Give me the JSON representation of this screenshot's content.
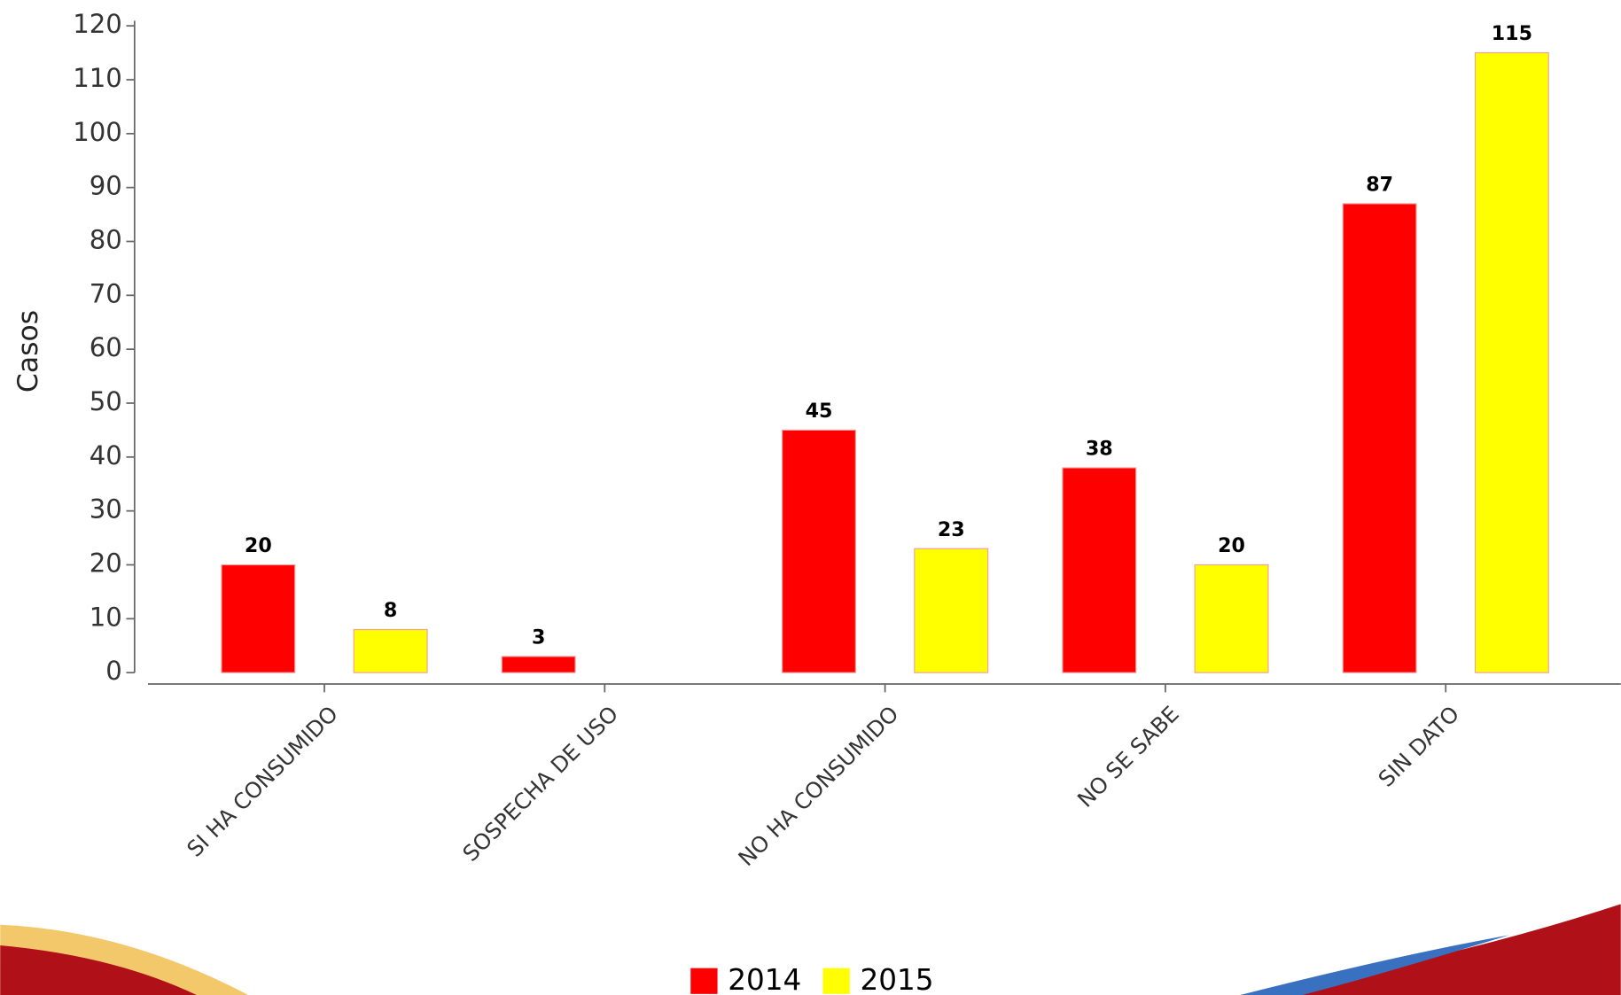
{
  "chart_data": {
    "type": "bar",
    "y_label": "Casos",
    "categories": [
      "SI HA CONSUMIDO",
      "SOSPECHA DE USO",
      "NO HA CONSUMIDO",
      "NO SE SABE",
      "SIN DATO"
    ],
    "series": [
      {
        "name": "2014",
        "color": "#ff0000",
        "values": [
          20,
          3,
          45,
          38,
          87
        ]
      },
      {
        "name": "2015",
        "color": "#ffff00",
        "values": [
          8,
          null,
          23,
          20,
          115
        ]
      }
    ],
    "ylim": [
      0,
      120
    ],
    "yticks": [
      0,
      10,
      20,
      30,
      40,
      50,
      60,
      70,
      80,
      90,
      100,
      110,
      120
    ],
    "legend": "bottom"
  }
}
